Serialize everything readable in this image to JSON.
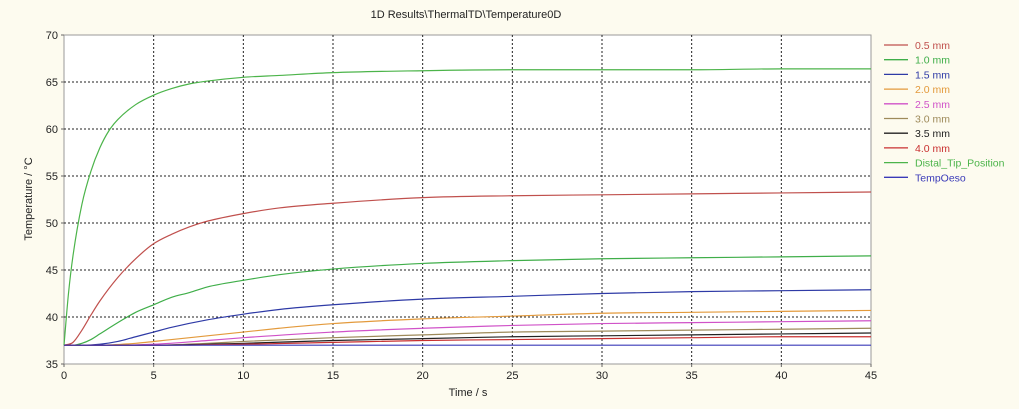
{
  "chart_data": {
    "type": "line",
    "title": "1D Results\\ThermalTD\\Temperature0D",
    "xlabel": "Time / s",
    "ylabel": "Temperature / °C",
    "xlim": [
      0,
      45
    ],
    "ylim": [
      35,
      70
    ],
    "xticks": [
      0,
      5,
      10,
      15,
      20,
      25,
      30,
      35,
      40,
      45
    ],
    "yticks": [
      35,
      40,
      45,
      50,
      55,
      60,
      65,
      70
    ],
    "grid": true,
    "legend_position": "right",
    "series": [
      {
        "name": "0.5 mm",
        "color": "#c0504d",
        "points": [
          [
            0,
            37.0
          ],
          [
            0.5,
            37.3
          ],
          [
            1,
            38.6
          ],
          [
            1.5,
            40.2
          ],
          [
            2,
            41.7
          ],
          [
            3,
            44.2
          ],
          [
            4,
            46.2
          ],
          [
            5,
            47.8
          ],
          [
            6,
            48.8
          ],
          [
            7,
            49.6
          ],
          [
            8,
            50.2
          ],
          [
            10,
            51.0
          ],
          [
            12,
            51.6
          ],
          [
            15,
            52.1
          ],
          [
            20,
            52.7
          ],
          [
            25,
            52.9
          ],
          [
            30,
            53.0
          ],
          [
            35,
            53.1
          ],
          [
            40,
            53.2
          ],
          [
            45,
            53.3
          ]
        ]
      },
      {
        "name": "1.0 mm",
        "color": "#3fae49",
        "points": [
          [
            0,
            37.0
          ],
          [
            0.5,
            37.0
          ],
          [
            1,
            37.2
          ],
          [
            1.5,
            37.6
          ],
          [
            2,
            38.2
          ],
          [
            3,
            39.4
          ],
          [
            4,
            40.5
          ],
          [
            5,
            41.3
          ],
          [
            6,
            42.1
          ],
          [
            7,
            42.6
          ],
          [
            8,
            43.2
          ],
          [
            10,
            43.9
          ],
          [
            12,
            44.5
          ],
          [
            15,
            45.1
          ],
          [
            20,
            45.7
          ],
          [
            25,
            46.0
          ],
          [
            30,
            46.2
          ],
          [
            35,
            46.3
          ],
          [
            40,
            46.4
          ],
          [
            45,
            46.5
          ]
        ]
      },
      {
        "name": "1.5 mm",
        "color": "#2e3aa6",
        "points": [
          [
            0,
            37.0
          ],
          [
            1,
            37.0
          ],
          [
            2,
            37.1
          ],
          [
            3,
            37.4
          ],
          [
            4,
            37.9
          ],
          [
            5,
            38.4
          ],
          [
            6,
            38.9
          ],
          [
            8,
            39.7
          ],
          [
            10,
            40.3
          ],
          [
            12,
            40.8
          ],
          [
            15,
            41.3
          ],
          [
            20,
            41.9
          ],
          [
            25,
            42.2
          ],
          [
            30,
            42.5
          ],
          [
            35,
            42.7
          ],
          [
            40,
            42.8
          ],
          [
            45,
            42.9
          ]
        ]
      },
      {
        "name": "2.0 mm",
        "color": "#e39a3c",
        "points": [
          [
            0,
            37.0
          ],
          [
            2,
            37.0
          ],
          [
            4,
            37.2
          ],
          [
            6,
            37.6
          ],
          [
            8,
            38.0
          ],
          [
            10,
            38.4
          ],
          [
            12,
            38.8
          ],
          [
            15,
            39.3
          ],
          [
            20,
            39.8
          ],
          [
            25,
            40.1
          ],
          [
            30,
            40.4
          ],
          [
            35,
            40.5
          ],
          [
            40,
            40.6
          ],
          [
            45,
            40.7
          ]
        ]
      },
      {
        "name": "2.5 mm",
        "color": "#d052c8",
        "points": [
          [
            0,
            37.0
          ],
          [
            3,
            37.0
          ],
          [
            5,
            37.1
          ],
          [
            8,
            37.5
          ],
          [
            10,
            37.8
          ],
          [
            15,
            38.4
          ],
          [
            20,
            38.8
          ],
          [
            25,
            39.1
          ],
          [
            30,
            39.3
          ],
          [
            35,
            39.4
          ],
          [
            40,
            39.5
          ],
          [
            45,
            39.6
          ]
        ]
      },
      {
        "name": "3.0 mm",
        "color": "#9e8a5a",
        "points": [
          [
            0,
            37.0
          ],
          [
            5,
            37.0
          ],
          [
            8,
            37.2
          ],
          [
            10,
            37.4
          ],
          [
            15,
            37.8
          ],
          [
            20,
            38.1
          ],
          [
            25,
            38.4
          ],
          [
            30,
            38.5
          ],
          [
            35,
            38.6
          ],
          [
            40,
            38.7
          ],
          [
            45,
            38.8
          ]
        ]
      },
      {
        "name": "3.5 mm",
        "color": "#222222",
        "points": [
          [
            0,
            37.0
          ],
          [
            5,
            37.0
          ],
          [
            10,
            37.2
          ],
          [
            15,
            37.5
          ],
          [
            20,
            37.7
          ],
          [
            25,
            37.9
          ],
          [
            30,
            38.0
          ],
          [
            35,
            38.1
          ],
          [
            40,
            38.2
          ],
          [
            45,
            38.3
          ]
        ]
      },
      {
        "name": "4.0 mm",
        "color": "#c93030",
        "points": [
          [
            0,
            37.0
          ],
          [
            6,
            37.0
          ],
          [
            10,
            37.1
          ],
          [
            15,
            37.3
          ],
          [
            20,
            37.5
          ],
          [
            25,
            37.6
          ],
          [
            30,
            37.7
          ],
          [
            35,
            37.8
          ],
          [
            40,
            37.9
          ],
          [
            45,
            37.9
          ]
        ]
      },
      {
        "name": "Distal_Tip_Position",
        "color": "#4cb44a",
        "points": [
          [
            0,
            37.0
          ],
          [
            0.25,
            42.5
          ],
          [
            0.5,
            46.5
          ],
          [
            1,
            52.0
          ],
          [
            1.5,
            55.5
          ],
          [
            2,
            58.0
          ],
          [
            2.5,
            59.8
          ],
          [
            3,
            61.0
          ],
          [
            4,
            62.6
          ],
          [
            5,
            63.6
          ],
          [
            6,
            64.3
          ],
          [
            7,
            64.8
          ],
          [
            8,
            65.1
          ],
          [
            10,
            65.5
          ],
          [
            12,
            65.7
          ],
          [
            15,
            66.0
          ],
          [
            20,
            66.2
          ],
          [
            25,
            66.3
          ],
          [
            30,
            66.3
          ],
          [
            35,
            66.3
          ],
          [
            40,
            66.4
          ],
          [
            45,
            66.4
          ]
        ]
      },
      {
        "name": "TempOeso",
        "color": "#3a3ab8",
        "points": [
          [
            0,
            37.0
          ],
          [
            45,
            37.0
          ]
        ]
      }
    ]
  }
}
